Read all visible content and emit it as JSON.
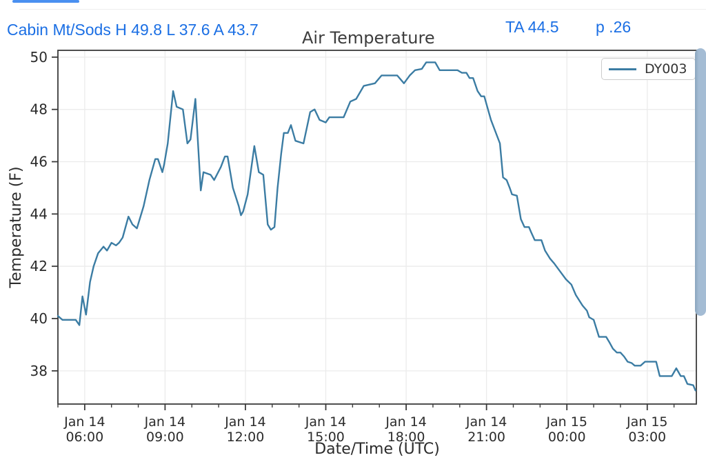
{
  "header": {
    "station_summary": "Cabin Mt/Sods H 49.8 L 37.6 A 43.7",
    "title": "Air Temperature",
    "ta_value": "TA 44.5",
    "p_value": "p .26"
  },
  "legend": {
    "series_label": "DY003"
  },
  "colors": {
    "line": "#3b7ca3",
    "header_blue": "#1b6fe4",
    "title_text": "#3d3d3d",
    "axis": "#3a3a3a",
    "tick_label": "#2b2b2b",
    "grid": "#ebebeb",
    "scrollbar": "#a4bcd4",
    "progress_bar": "#4a90f0"
  },
  "chart_data": {
    "type": "line",
    "title": "Air Temperature",
    "xlabel": "Date/Time (UTC)",
    "ylabel": "Temperature (F)",
    "grid": true,
    "legend_position": "upper right",
    "x_unit": "minutes after Jan 14 00:00 UTC",
    "xlim": [
      300,
      1730
    ],
    "ylim": [
      36.73,
      50.26
    ],
    "y_ticks": [
      38,
      40,
      42,
      44,
      46,
      48,
      50
    ],
    "x_ticks": [
      {
        "m": 360,
        "line1": "Jan 14",
        "line2": "06:00"
      },
      {
        "m": 540,
        "line1": "Jan 14",
        "line2": "09:00"
      },
      {
        "m": 720,
        "line1": "Jan 14",
        "line2": "12:00"
      },
      {
        "m": 900,
        "line1": "Jan 14",
        "line2": "15:00"
      },
      {
        "m": 1080,
        "line1": "Jan 14",
        "line2": "18:00"
      },
      {
        "m": 1260,
        "line1": "Jan 14",
        "line2": "21:00"
      },
      {
        "m": 1440,
        "line1": "Jan 15",
        "line2": "00:00"
      },
      {
        "m": 1620,
        "line1": "Jan 15",
        "line2": "03:00"
      }
    ],
    "minor_tick_step_minutes": 60,
    "series": [
      {
        "name": "DY003",
        "points": [
          [
            300,
            40.1
          ],
          [
            310,
            39.95
          ],
          [
            340,
            39.95
          ],
          [
            348,
            39.75
          ],
          [
            355,
            40.85
          ],
          [
            363,
            40.15
          ],
          [
            372,
            41.4
          ],
          [
            380,
            42.0
          ],
          [
            390,
            42.5
          ],
          [
            402,
            42.75
          ],
          [
            410,
            42.6
          ],
          [
            420,
            42.9
          ],
          [
            430,
            42.8
          ],
          [
            437,
            42.9
          ],
          [
            445,
            43.1
          ],
          [
            458,
            43.9
          ],
          [
            467,
            43.6
          ],
          [
            477,
            43.45
          ],
          [
            492,
            44.3
          ],
          [
            505,
            45.3
          ],
          [
            518,
            46.1
          ],
          [
            524,
            46.1
          ],
          [
            534,
            45.6
          ],
          [
            538,
            45.9
          ],
          [
            546,
            46.7
          ],
          [
            558,
            48.7
          ],
          [
            566,
            48.1
          ],
          [
            580,
            48.0
          ],
          [
            590,
            46.7
          ],
          [
            597,
            46.85
          ],
          [
            608,
            48.4
          ],
          [
            620,
            44.9
          ],
          [
            626,
            45.6
          ],
          [
            642,
            45.5
          ],
          [
            650,
            45.3
          ],
          [
            665,
            45.8
          ],
          [
            674,
            46.2
          ],
          [
            680,
            46.2
          ],
          [
            692,
            45.0
          ],
          [
            705,
            44.3
          ],
          [
            710,
            43.95
          ],
          [
            715,
            44.1
          ],
          [
            725,
            44.75
          ],
          [
            740,
            46.6
          ],
          [
            750,
            45.6
          ],
          [
            760,
            45.5
          ],
          [
            770,
            43.6
          ],
          [
            777,
            43.4
          ],
          [
            785,
            43.5
          ],
          [
            792,
            45.0
          ],
          [
            800,
            46.3
          ],
          [
            806,
            47.1
          ],
          [
            815,
            47.1
          ],
          [
            822,
            47.4
          ],
          [
            832,
            46.8
          ],
          [
            850,
            46.7
          ],
          [
            865,
            47.9
          ],
          [
            875,
            48.0
          ],
          [
            886,
            47.6
          ],
          [
            900,
            47.5
          ],
          [
            908,
            47.7
          ],
          [
            940,
            47.7
          ],
          [
            955,
            48.3
          ],
          [
            968,
            48.4
          ],
          [
            985,
            48.9
          ],
          [
            1010,
            49.0
          ],
          [
            1025,
            49.3
          ],
          [
            1060,
            49.3
          ],
          [
            1075,
            49.0
          ],
          [
            1088,
            49.3
          ],
          [
            1100,
            49.5
          ],
          [
            1115,
            49.55
          ],
          [
            1125,
            49.8
          ],
          [
            1145,
            49.8
          ],
          [
            1155,
            49.5
          ],
          [
            1195,
            49.5
          ],
          [
            1205,
            49.4
          ],
          [
            1215,
            49.4
          ],
          [
            1222,
            49.2
          ],
          [
            1230,
            49.2
          ],
          [
            1240,
            48.7
          ],
          [
            1248,
            48.5
          ],
          [
            1255,
            48.5
          ],
          [
            1270,
            47.6
          ],
          [
            1290,
            46.7
          ],
          [
            1297,
            45.4
          ],
          [
            1305,
            45.3
          ],
          [
            1312,
            45.0
          ],
          [
            1317,
            44.75
          ],
          [
            1328,
            44.7
          ],
          [
            1337,
            43.8
          ],
          [
            1345,
            43.5
          ],
          [
            1355,
            43.5
          ],
          [
            1360,
            43.3
          ],
          [
            1368,
            43.0
          ],
          [
            1383,
            43.0
          ],
          [
            1391,
            42.6
          ],
          [
            1402,
            42.3
          ],
          [
            1412,
            42.1
          ],
          [
            1425,
            41.8
          ],
          [
            1438,
            41.5
          ],
          [
            1450,
            41.3
          ],
          [
            1460,
            40.9
          ],
          [
            1475,
            40.5
          ],
          [
            1485,
            40.3
          ],
          [
            1490,
            40.05
          ],
          [
            1500,
            39.95
          ],
          [
            1512,
            39.3
          ],
          [
            1528,
            39.3
          ],
          [
            1535,
            39.1
          ],
          [
            1543,
            38.85
          ],
          [
            1552,
            38.7
          ],
          [
            1560,
            38.7
          ],
          [
            1568,
            38.55
          ],
          [
            1576,
            38.35
          ],
          [
            1585,
            38.3
          ],
          [
            1592,
            38.2
          ],
          [
            1605,
            38.2
          ],
          [
            1615,
            38.35
          ],
          [
            1640,
            38.35
          ],
          [
            1648,
            37.8
          ],
          [
            1675,
            37.8
          ],
          [
            1685,
            38.1
          ],
          [
            1695,
            37.8
          ],
          [
            1702,
            37.8
          ],
          [
            1710,
            37.5
          ],
          [
            1723,
            37.45
          ],
          [
            1728,
            37.25
          ]
        ]
      }
    ]
  }
}
